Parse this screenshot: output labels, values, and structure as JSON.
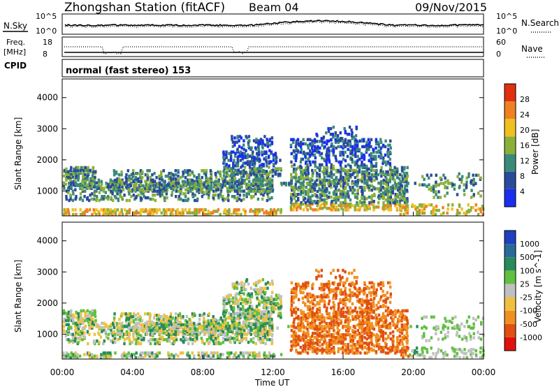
{
  "header": {
    "station": "Zhongshan Station (fitACF)",
    "beam": "Beam 04",
    "date": "09/Nov/2015"
  },
  "top_panel": {
    "left_label": "N.Sky",
    "left_ticks": [
      "10^5",
      "10^0"
    ],
    "right_ticks": [
      "10^5",
      "10^0"
    ],
    "right_label": "N.Search"
  },
  "freq_panel": {
    "left_label_1": "Freq.",
    "left_label_2": "[MHz]",
    "left_ticks": [
      "18",
      "8"
    ],
    "right_ticks": [
      "60",
      "0"
    ],
    "right_label": "Nave"
  },
  "cpid_panel": {
    "label": "CPID",
    "text": "normal (fast stereo) 153"
  },
  "chart_data": [
    {
      "type": "heatmap",
      "name": "power",
      "ylabel": "Slant Range [km]",
      "y_ticks": [
        "1000",
        "2000",
        "3000",
        "4000"
      ],
      "colorbar_label": "Power [dB]",
      "colorbar_ticks": [
        "4",
        "8",
        "12",
        "16",
        "20",
        "24",
        "28"
      ],
      "colors": [
        "#1a2ef0",
        "#2a4a9a",
        "#3a8a7a",
        "#8ab03a",
        "#f0c020",
        "#f08020",
        "#e03010"
      ],
      "ylim": [
        200,
        4600
      ]
    },
    {
      "type": "heatmap",
      "name": "velocity",
      "ylabel": "Slant Range [km]",
      "y_ticks": [
        "1000",
        "2000",
        "3000",
        "4000"
      ],
      "colorbar_label": "Velocity [m s^-1]",
      "colorbar_ticks": [
        "1000",
        "500",
        "100",
        "25",
        "-25",
        "-100",
        "-500",
        "-1000"
      ],
      "colors": [
        "#2040c0",
        "#2a6a9a",
        "#2a8a5a",
        "#60c040",
        "#c0c0c0",
        "#f0c040",
        "#f09020",
        "#e05010",
        "#e01010"
      ],
      "ylim": [
        200,
        4600
      ]
    }
  ],
  "x_axis": {
    "ticks": [
      "00:00",
      "04:00",
      "08:00",
      "12:00",
      "16:00",
      "20:00",
      "00:00"
    ],
    "label": "Time UT"
  }
}
